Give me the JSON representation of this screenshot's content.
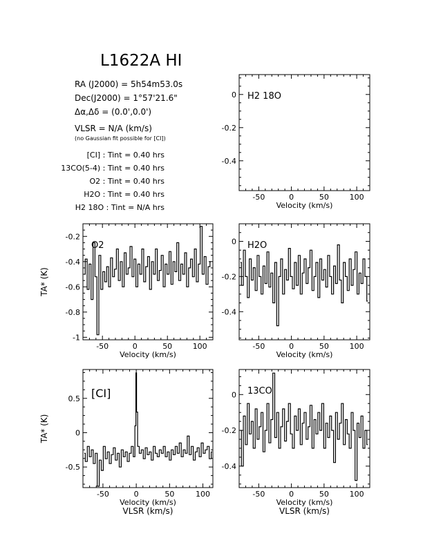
{
  "source": "L1622A HI",
  "info": {
    "ra": "RA (J2000) = 5h54m53.0s",
    "dec": "Dec(J2000) = 1°57'21.6\"",
    "offset": "Δα,Δδ = (0.0',0.0')",
    "vlsr": "VLSR = N/A (km/s)",
    "gauss_note": "(no Gaussian fit possible for [CI])",
    "tint": [
      {
        "line": "[CI]",
        "value": "0.40 hrs"
      },
      {
        "line": "13CO(5-4)",
        "value": "0.40 hrs"
      },
      {
        "line": "O2",
        "value": "0.40 hrs"
      },
      {
        "line": "H2O",
        "value": "0.40 hrs"
      },
      {
        "line": "H2 18O",
        "value": "N/A hrs"
      }
    ]
  },
  "chart_data": [
    {
      "type": "line",
      "name": "H2 18O",
      "label": "H2 18O",
      "xlabel": "Velocity (km/s)",
      "xlim": [
        -80,
        120
      ],
      "ylim": [
        -0.58,
        0.12
      ],
      "yticks": [
        0,
        -0.2,
        -0.4
      ],
      "xticks": [
        -50,
        0,
        50,
        100
      ],
      "x": [],
      "y": []
    },
    {
      "type": "line",
      "name": "O2",
      "label": "O2",
      "xlabel": "Velocity (km/s)",
      "ylabel": "TA* (K)",
      "xlim": [
        -80,
        120
      ],
      "ylim": [
        -1.02,
        -0.1
      ],
      "yticks": [
        -0.2,
        -0.4,
        -0.6,
        -0.8,
        -1
      ],
      "xticks": [
        -50,
        0,
        50,
        100
      ],
      "x": [
        -78,
        -75,
        -72,
        -69,
        -66,
        -63,
        -60,
        -57,
        -54,
        -51,
        -48,
        -45,
        -42,
        -39,
        -36,
        -33,
        -30,
        -27,
        -24,
        -21,
        -18,
        -15,
        -12,
        -9,
        -6,
        -3,
        0,
        3,
        6,
        9,
        12,
        15,
        18,
        21,
        24,
        27,
        30,
        33,
        36,
        39,
        42,
        45,
        48,
        51,
        54,
        57,
        60,
        63,
        66,
        69,
        72,
        75,
        78,
        81,
        84,
        87,
        90,
        93,
        96,
        99,
        102,
        105,
        108,
        111,
        114,
        117
      ],
      "y": [
        -0.5,
        -0.38,
        -0.62,
        -0.42,
        -0.7,
        -0.25,
        -0.52,
        -0.98,
        -0.35,
        -0.62,
        -0.48,
        -0.56,
        -0.44,
        -0.6,
        -0.37,
        -0.52,
        -0.46,
        -0.3,
        -0.55,
        -0.4,
        -0.6,
        -0.33,
        -0.5,
        -0.45,
        -0.28,
        -0.52,
        -0.38,
        -0.6,
        -0.42,
        -0.5,
        -0.3,
        -0.56,
        -0.44,
        -0.36,
        -0.62,
        -0.4,
        -0.5,
        -0.3,
        -0.55,
        -0.47,
        -0.35,
        -0.6,
        -0.42,
        -0.5,
        -0.32,
        -0.58,
        -0.4,
        -0.48,
        -0.25,
        -0.55,
        -0.42,
        -0.5,
        -0.33,
        -0.6,
        -0.45,
        -0.38,
        -0.52,
        -0.3,
        -0.56,
        -0.42,
        -0.12,
        -0.5,
        -0.36,
        -0.58,
        -0.44,
        -0.4
      ]
    },
    {
      "type": "line",
      "name": "H2O",
      "label": "H2O",
      "xlabel": "Velocity (km/s)",
      "xlim": [
        -80,
        120
      ],
      "ylim": [
        -0.56,
        0.1
      ],
      "yticks": [
        0,
        -0.2,
        -0.4
      ],
      "xticks": [
        -50,
        0,
        50,
        100
      ],
      "x": [
        -78,
        -75,
        -72,
        -69,
        -66,
        -63,
        -60,
        -57,
        -54,
        -51,
        -48,
        -45,
        -42,
        -39,
        -36,
        -33,
        -30,
        -27,
        -24,
        -21,
        -18,
        -15,
        -12,
        -9,
        -6,
        -3,
        0,
        3,
        6,
        9,
        12,
        15,
        18,
        21,
        24,
        27,
        30,
        33,
        36,
        39,
        42,
        45,
        48,
        51,
        54,
        57,
        60,
        63,
        66,
        69,
        72,
        75,
        78,
        81,
        84,
        87,
        90,
        93,
        96,
        99,
        102,
        105,
        108,
        111,
        114,
        117
      ],
      "y": [
        -0.12,
        -0.25,
        -0.05,
        -0.2,
        -0.32,
        -0.1,
        -0.22,
        -0.15,
        -0.28,
        -0.08,
        -0.2,
        -0.3,
        -0.14,
        -0.24,
        -0.06,
        -0.26,
        -0.18,
        -0.35,
        -0.12,
        -0.48,
        -0.2,
        -0.1,
        -0.3,
        -0.16,
        -0.22,
        -0.04,
        -0.2,
        -0.27,
        -0.12,
        -0.25,
        -0.08,
        -0.3,
        -0.18,
        -0.1,
        -0.24,
        -0.15,
        -0.05,
        -0.28,
        -0.2,
        -0.12,
        -0.32,
        -0.1,
        -0.22,
        -0.16,
        -0.26,
        -0.08,
        -0.2,
        -0.3,
        -0.14,
        -0.24,
        -0.02,
        -0.22,
        -0.35,
        -0.12,
        -0.2,
        -0.28,
        -0.1,
        -0.25,
        -0.16,
        -0.06,
        -0.3,
        -0.18,
        -0.24,
        -0.1,
        -0.2,
        -0.34
      ]
    },
    {
      "type": "line",
      "name": "[CI]",
      "label": "[CI]",
      "xlabel": "Velocity (km/s)",
      "xlabel2": "VLSR (km/s)",
      "ylabel": "TA* (K)",
      "xlim": [
        -80,
        115
      ],
      "ylim": [
        -0.8,
        0.92
      ],
      "yticks": [
        0.5,
        0,
        -0.5
      ],
      "xticks": [
        -50,
        0,
        50,
        100
      ],
      "x": [
        -78,
        -75,
        -72,
        -69,
        -66,
        -63,
        -60,
        -57,
        -54,
        -51,
        -48,
        -45,
        -42,
        -39,
        -36,
        -33,
        -30,
        -27,
        -24,
        -21,
        -18,
        -15,
        -12,
        -9,
        -6,
        -3,
        -1,
        0,
        1,
        3,
        6,
        9,
        12,
        15,
        18,
        21,
        24,
        27,
        30,
        33,
        36,
        39,
        42,
        45,
        48,
        51,
        54,
        57,
        60,
        63,
        66,
        69,
        72,
        75,
        78,
        81,
        84,
        87,
        90,
        93,
        96,
        99,
        102,
        105,
        108,
        111,
        114
      ],
      "y": [
        -0.3,
        -0.42,
        -0.2,
        -0.35,
        -0.25,
        -0.45,
        -0.3,
        -0.78,
        -0.4,
        -0.55,
        -0.2,
        -0.38,
        -0.28,
        -0.45,
        -0.32,
        -0.22,
        -0.4,
        -0.3,
        -0.5,
        -0.25,
        -0.35,
        -0.28,
        -0.42,
        -0.3,
        -0.2,
        -0.35,
        0.1,
        0.87,
        0.3,
        -0.2,
        -0.3,
        -0.25,
        -0.38,
        -0.22,
        -0.32,
        -0.28,
        -0.4,
        -0.2,
        -0.3,
        -0.35,
        -0.25,
        -0.3,
        -0.2,
        -0.35,
        -0.28,
        -0.4,
        -0.25,
        -0.32,
        -0.2,
        -0.3,
        -0.15,
        -0.35,
        -0.25,
        -0.3,
        -0.05,
        -0.32,
        -0.2,
        -0.4,
        -0.28,
        -0.22,
        -0.35,
        -0.15,
        -0.3,
        -0.25,
        -0.2,
        -0.38,
        -0.28
      ]
    },
    {
      "type": "line",
      "name": "13CO",
      "label": "13CO",
      "xlabel": "Velocity (km/s)",
      "xlabel2": "VLSR (km/s)",
      "xlim": [
        -80,
        120
      ],
      "ylim": [
        -0.52,
        0.14
      ],
      "yticks": [
        0,
        -0.2,
        -0.4
      ],
      "xticks": [
        -50,
        0,
        50,
        100
      ],
      "x": [
        -78,
        -75,
        -72,
        -69,
        -66,
        -63,
        -60,
        -57,
        -54,
        -51,
        -48,
        -45,
        -42,
        -39,
        -36,
        -33,
        -30,
        -27,
        -24,
        -21,
        -18,
        -15,
        -12,
        -9,
        -6,
        -3,
        0,
        3,
        6,
        9,
        12,
        15,
        18,
        21,
        24,
        27,
        30,
        33,
        36,
        39,
        42,
        45,
        48,
        51,
        54,
        57,
        60,
        63,
        66,
        69,
        72,
        75,
        78,
        81,
        84,
        87,
        90,
        93,
        96,
        99,
        102,
        105,
        108,
        111,
        114,
        117
      ],
      "y": [
        -0.2,
        -0.4,
        -0.12,
        -0.28,
        -0.05,
        -0.22,
        -0.15,
        -0.3,
        -0.08,
        -0.25,
        -0.18,
        -0.1,
        -0.32,
        -0.2,
        -0.05,
        -0.27,
        -0.14,
        0.12,
        -0.24,
        -0.1,
        -0.3,
        -0.18,
        -0.08,
        -0.26,
        -0.15,
        -0.05,
        -0.22,
        -0.3,
        -0.12,
        -0.2,
        -0.08,
        -0.28,
        -0.16,
        -0.1,
        -0.25,
        -0.18,
        -0.06,
        -0.3,
        -0.14,
        -0.22,
        -0.1,
        -0.2,
        -0.05,
        -0.3,
        -0.16,
        -0.24,
        -0.12,
        -0.2,
        -0.38,
        -0.1,
        -0.25,
        -0.16,
        -0.05,
        -0.28,
        -0.14,
        -0.22,
        -0.3,
        -0.1,
        -0.2,
        -0.48,
        -0.16,
        -0.24,
        -0.12,
        -0.3,
        -0.2,
        -0.28
      ]
    }
  ]
}
